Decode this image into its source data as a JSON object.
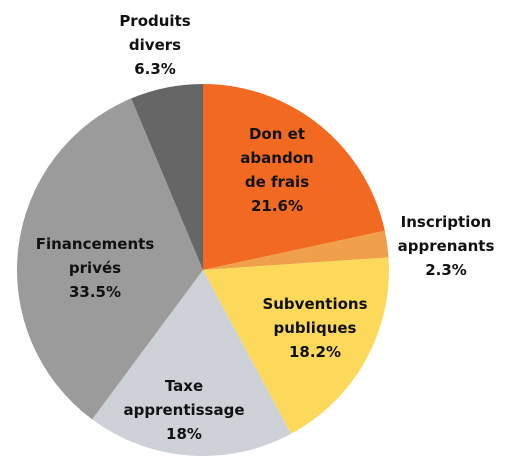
{
  "chart_data": {
    "type": "pie",
    "categories": [
      "Don et abandon de frais",
      "Inscription apprenants",
      "Subventions publiques",
      "Taxe apprentissage",
      "Financements privés",
      "Produits divers"
    ],
    "values": [
      21.6,
      2.3,
      18.2,
      18,
      33.5,
      6.3
    ],
    "value_labels": [
      "21.6%",
      "2.3%",
      "18.2%",
      "18%",
      "33.5%",
      "6.3%"
    ],
    "colors": [
      "#f26a21",
      "#f0a04b",
      "#fcd95a",
      "#ced2d8",
      "#9b9b9b",
      "#666666"
    ]
  }
}
